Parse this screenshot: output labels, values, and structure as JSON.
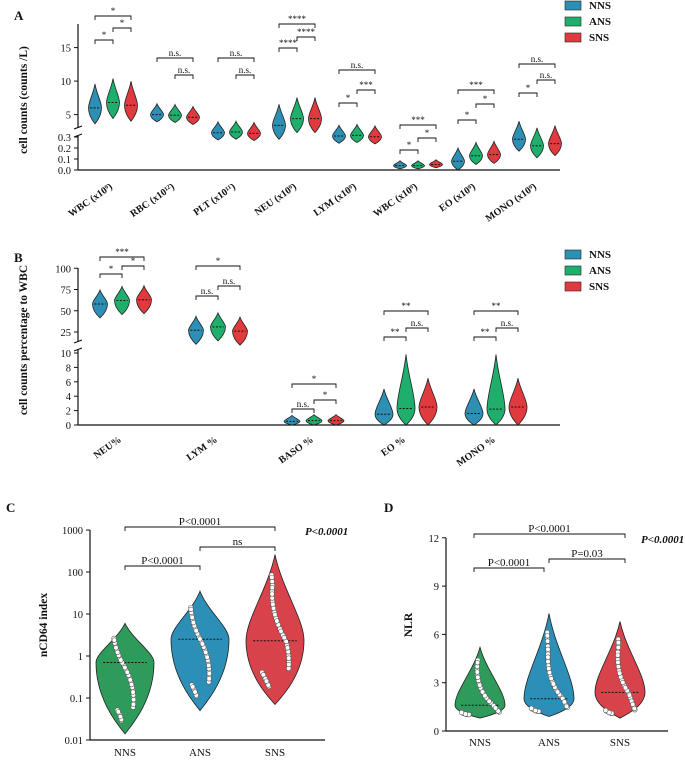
{
  "colors": {
    "NNS": "#2c8fb3",
    "ANS": "#1fae6b",
    "SNS": "#e0393e",
    "NNS_D": "#2f9b5a",
    "ANS_D": "#2b8fb8",
    "SNS_D": "#d8424a"
  },
  "chart_data": [
    {
      "panel": "A",
      "type": "violin",
      "ylabel": "cell counts (counts /L)",
      "yticks_upper": [
        "5",
        "10",
        "15"
      ],
      "yticks_lower": [
        "0.0",
        "0.1",
        "0.2",
        "0.3"
      ],
      "legend": [
        "NNS",
        "ANS",
        "SNS"
      ],
      "categories": [
        "WBC (x10⁹)",
        "RBC (x10¹²)",
        "PLT (x10¹¹)",
        "NEU (x10⁹)",
        "LYM (x10⁹)",
        "WBC (x10⁹)",
        "EO (x10⁹)",
        "MONO (x10⁹)"
      ],
      "medians": [
        [
          6.0,
          6.8,
          6.4
        ],
        [
          5.0,
          4.9,
          4.6
        ],
        [
          2.3,
          2.4,
          2.2
        ],
        [
          3.4,
          4.4,
          4.4
        ],
        [
          1.8,
          1.9,
          1.7
        ],
        [
          0.04,
          0.04,
          0.05
        ],
        [
          0.08,
          0.13,
          0.14
        ],
        [
          0.28,
          0.22,
          0.24
        ]
      ],
      "significance": [
        [
          "*",
          "*",
          "*"
        ],
        [
          "n.s.",
          "n.s."
        ],
        [
          "n.s.",
          "n.s."
        ],
        [
          "****",
          "****",
          "****"
        ],
        [
          "*",
          "***",
          "n.s."
        ],
        [
          "*",
          "*",
          "***"
        ],
        [
          "*",
          "*",
          "***"
        ],
        [
          "*",
          "n.s.",
          "n.s."
        ]
      ]
    },
    {
      "panel": "B",
      "type": "violin",
      "ylabel": "cell counts percentage to WBC",
      "yticks_upper": [
        "25",
        "50",
        "75",
        "100"
      ],
      "yticks_lower": [
        "0",
        "2",
        "4",
        "6",
        "8",
        "10"
      ],
      "legend": [
        "NNS",
        "ANS",
        "SNS"
      ],
      "categories": [
        "NEU%",
        "LYM %",
        "BASO %",
        "EO %",
        "MONO %"
      ],
      "medians": [
        [
          58,
          62,
          63
        ],
        [
          27,
          31,
          26
        ],
        [
          0.5,
          0.6,
          0.6
        ],
        [
          1.5,
          2.3,
          2.5
        ],
        [
          1.6,
          2.2,
          2.5
        ]
      ],
      "significance": [
        [
          "*",
          "*",
          "***"
        ],
        [
          "n.s.",
          "n.s.",
          "*"
        ],
        [
          "n.s.",
          "*",
          "*"
        ],
        [
          "**",
          "n.s.",
          "**"
        ],
        [
          "**",
          "n.s.",
          "**"
        ]
      ]
    },
    {
      "panel": "C",
      "type": "violin",
      "scale": "log",
      "ylabel": "nCD64 index",
      "yticks": [
        "0.01",
        "0.1",
        "1",
        "10",
        "100",
        "1000"
      ],
      "categories": [
        "NNS",
        "ANS",
        "SNS"
      ],
      "medians": [
        0.7,
        2.5,
        2.3
      ],
      "comparisons": [
        "P<0.0001",
        "ns",
        "P<0.0001"
      ],
      "overall_p": "P<0.0001"
    },
    {
      "panel": "D",
      "type": "violin",
      "ylabel": "NLR",
      "yticks": [
        "0",
        "3",
        "6",
        "9",
        "12"
      ],
      "ylim": [
        0,
        12
      ],
      "categories": [
        "NNS",
        "ANS",
        "SNS"
      ],
      "medians": [
        1.6,
        2.0,
        2.4
      ],
      "comparisons": [
        "P<0.0001",
        "P=0.03",
        "P<0.0001"
      ],
      "overall_p": "P<0.0001"
    }
  ]
}
